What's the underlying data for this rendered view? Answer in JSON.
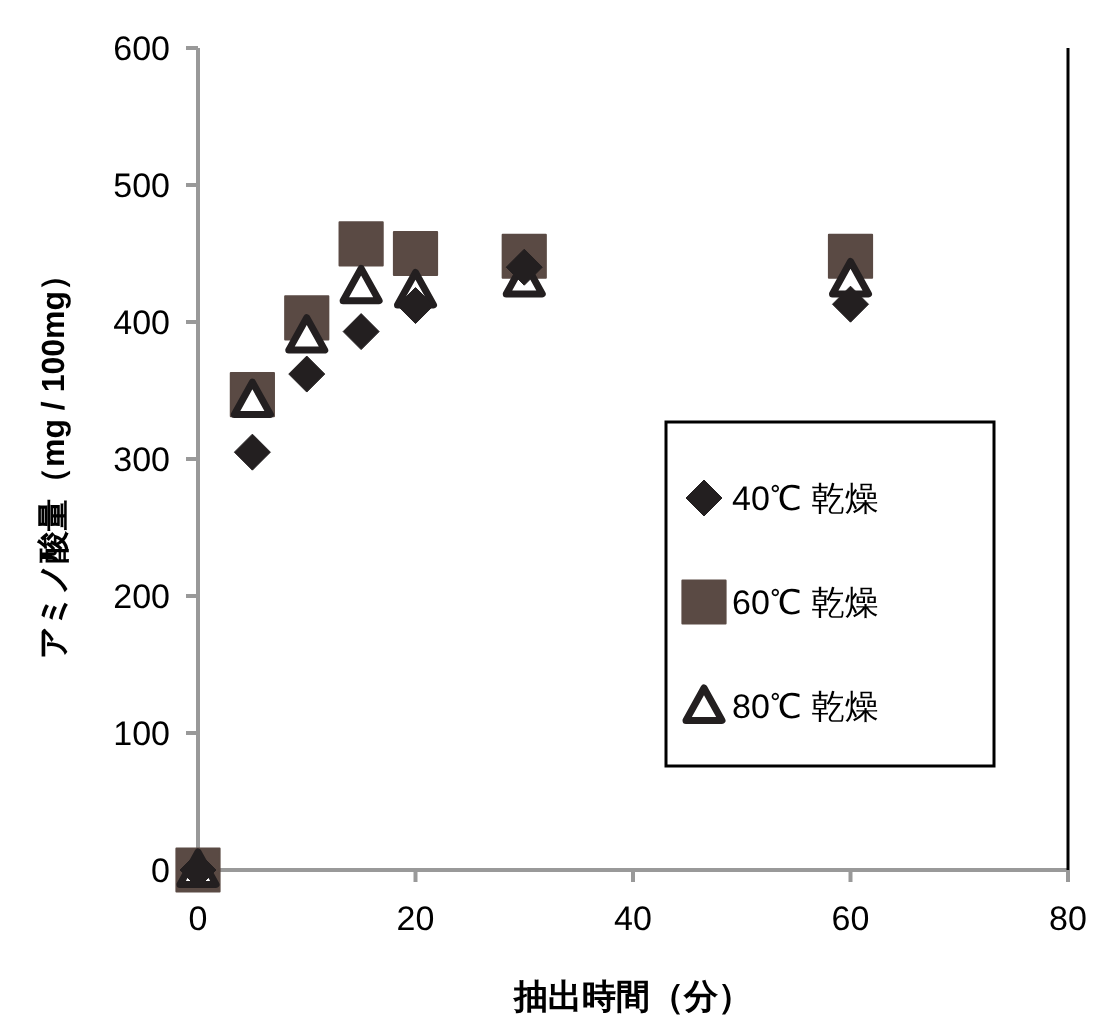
{
  "chart_data": {
    "type": "scatter",
    "xlabel": "抽出時間（分）",
    "ylabel": "アミノ酸量（mg / 100mg）",
    "xlim": [
      0,
      80
    ],
    "xticks": [
      0,
      20,
      40,
      60,
      80
    ],
    "ylim": [
      0,
      600
    ],
    "yticks": [
      0,
      100,
      200,
      300,
      400,
      500,
      600
    ],
    "grid": false,
    "legend": "right",
    "series": [
      {
        "name": "40℃ 乾燥",
        "color": "#231f20",
        "marker": "diamond",
        "x": [
          0,
          5,
          10,
          15,
          20,
          30,
          60
        ],
        "values": [
          0,
          305,
          362,
          393,
          412,
          440,
          413
        ]
      },
      {
        "name": "60℃ 乾燥",
        "color": "#5a4a44",
        "marker": "square",
        "x": [
          0,
          5,
          10,
          15,
          20,
          30,
          60
        ],
        "values": [
          0,
          347,
          403,
          457,
          450,
          448,
          448
        ]
      },
      {
        "name": "80℃ 乾燥",
        "color": "#ffffff",
        "marker": "triangle",
        "x": [
          0,
          5,
          10,
          15,
          20,
          30,
          60
        ],
        "values": [
          0,
          343,
          390,
          426,
          423,
          431,
          431
        ]
      }
    ]
  }
}
